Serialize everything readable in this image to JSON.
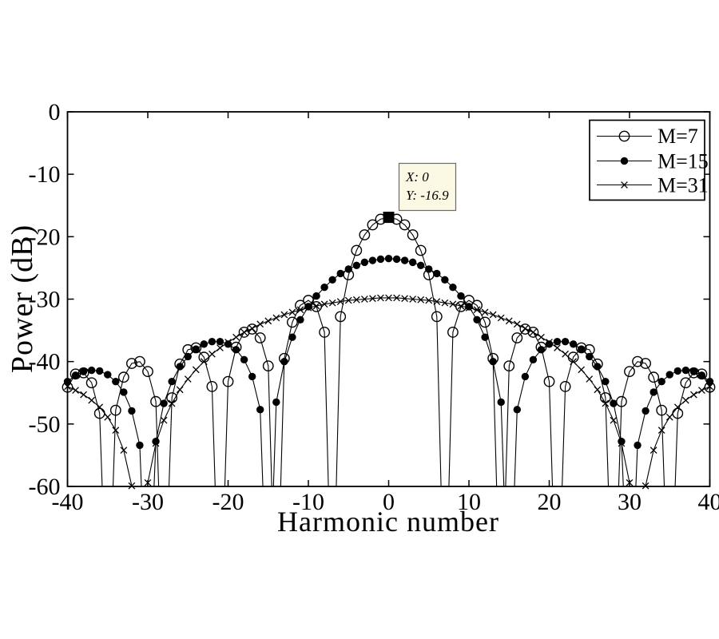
{
  "figure": {
    "background": "#ffffff",
    "line_color": "#000000"
  },
  "chart_data": {
    "type": "line",
    "title": "",
    "xlabel": "Harmonic number",
    "ylabel": "Power (dB)",
    "xlim": [
      -40,
      40
    ],
    "ylim": [
      -60,
      0
    ],
    "grid": false,
    "legend_position": "northeast",
    "xticks": [
      -40,
      -30,
      -20,
      -10,
      0,
      10,
      20,
      30,
      40
    ],
    "xtick_labels": [
      "-40",
      "-30",
      "-20",
      "-10",
      "0",
      "10",
      "20",
      "30",
      "40"
    ],
    "yticks": [
      0,
      -10,
      -20,
      -30,
      -40,
      -50,
      -60
    ],
    "ytick_labels": [
      "0",
      "-10",
      "-20",
      "-30",
      "-40",
      "-50",
      "-60"
    ],
    "x": [
      -40,
      -39,
      -38,
      -37,
      -36,
      -35,
      -34,
      -33,
      -32,
      -31,
      -30,
      -29,
      -28,
      -27,
      -26,
      -25,
      -24,
      -23,
      -22,
      -21,
      -20,
      -19,
      -18,
      -17,
      -16,
      -15,
      -14,
      -13,
      -12,
      -11,
      -10,
      -9,
      -8,
      -7,
      -6,
      -5,
      -4,
      -3,
      -2,
      -1,
      0,
      1,
      2,
      3,
      4,
      5,
      6,
      7,
      8,
      9,
      10,
      11,
      12,
      13,
      14,
      15,
      16,
      17,
      18,
      19,
      20,
      21,
      22,
      23,
      24,
      25,
      26,
      27,
      28,
      29,
      30,
      31,
      32,
      33,
      34,
      35,
      36,
      37,
      38,
      39,
      40
    ],
    "series": [
      {
        "name": "M=7",
        "marker": "circle-open",
        "color": "#000000",
        "values": [
          -44.1,
          -42.0,
          -41.8,
          -43.4,
          -48.3,
          null,
          -47.8,
          -42.5,
          -40.3,
          -40.0,
          -41.6,
          -46.4,
          null,
          -45.8,
          -40.4,
          -38.1,
          -37.8,
          -39.3,
          -44.0,
          null,
          -43.2,
          -37.7,
          -35.3,
          -34.8,
          -36.2,
          -40.7,
          null,
          -39.5,
          -33.7,
          -31.0,
          -30.2,
          -31.2,
          -35.3,
          null,
          -32.8,
          -26.1,
          -22.2,
          -19.7,
          -18.1,
          -17.2,
          -16.9,
          -17.2,
          -18.1,
          -19.7,
          -22.2,
          -26.1,
          -32.8,
          null,
          -35.3,
          -31.2,
          -30.2,
          -31.0,
          -33.7,
          -39.5,
          null,
          -40.7,
          -36.2,
          -34.8,
          -35.3,
          -37.7,
          -43.2,
          null,
          -44.0,
          -39.3,
          -37.8,
          -38.1,
          -40.4,
          -45.8,
          null,
          -46.4,
          -41.6,
          -40.0,
          -40.3,
          -42.5,
          -47.8,
          null,
          -48.3,
          -43.4,
          -41.8,
          -42.0,
          -44.1
        ]
      },
      {
        "name": "M=15",
        "marker": "dot",
        "color": "#000000",
        "values": [
          -43.2,
          -42.2,
          -41.6,
          -41.4,
          -41.5,
          -42.1,
          -43.2,
          -44.9,
          -47.9,
          -53.4,
          null,
          -52.8,
          -46.7,
          -43.2,
          -40.8,
          -39.2,
          -38.0,
          -37.2,
          -36.8,
          -36.8,
          -37.2,
          -38.1,
          -39.7,
          -42.4,
          -47.7,
          null,
          -46.5,
          -40.0,
          -36.1,
          -33.3,
          -31.2,
          -29.5,
          -28.1,
          -26.9,
          -25.9,
          -25.2,
          -24.6,
          -24.1,
          -23.8,
          -23.6,
          -23.5,
          -23.6,
          -23.8,
          -24.1,
          -24.6,
          -25.2,
          -25.9,
          -26.9,
          -28.1,
          -29.5,
          -31.2,
          -33.3,
          -36.1,
          -40.0,
          -46.5,
          null,
          -47.7,
          -42.4,
          -39.7,
          -38.1,
          -37.2,
          -36.8,
          -36.8,
          -37.2,
          -38.0,
          -39.2,
          -40.8,
          -43.2,
          -46.7,
          -52.8,
          null,
          -53.4,
          -47.9,
          -44.9,
          -43.2,
          -42.1,
          -41.5,
          -41.4,
          -41.6,
          -42.2,
          -43.2
        ]
      },
      {
        "name": "M=31",
        "marker": "x",
        "color": "#000000",
        "values": [
          -44.0,
          -44.6,
          -45.3,
          -46.2,
          -47.3,
          -48.9,
          -51.0,
          -54.2,
          -59.9,
          null,
          -59.4,
          -53.1,
          -49.4,
          -46.7,
          -44.5,
          -42.8,
          -41.3,
          -40.0,
          -38.8,
          -37.8,
          -36.9,
          -36.1,
          -35.3,
          -34.7,
          -34.0,
          -33.5,
          -33.0,
          -32.5,
          -32.1,
          -31.7,
          -31.4,
          -31.1,
          -30.8,
          -30.6,
          -30.4,
          -30.2,
          -30.1,
          -30.0,
          -29.9,
          -29.8,
          -29.8,
          -29.8,
          -29.9,
          -30.0,
          -30.1,
          -30.2,
          -30.4,
          -30.6,
          -30.8,
          -31.1,
          -31.4,
          -31.7,
          -32.1,
          -32.5,
          -33.0,
          -33.5,
          -34.0,
          -34.7,
          -35.3,
          -36.1,
          -36.9,
          -37.8,
          -38.8,
          -40.0,
          -41.3,
          -42.8,
          -44.5,
          -46.7,
          -49.4,
          -53.1,
          -59.4,
          null,
          -59.9,
          -54.2,
          -51.0,
          -48.9,
          -47.3,
          -46.2,
          -45.3,
          -44.6,
          -44.0
        ]
      }
    ],
    "datatip": {
      "x": 0,
      "y": -16.9,
      "line1": "X: 0",
      "line2": "Y: -16.9",
      "box_color": "#fbf9e4",
      "border_color": "#6b6b6b",
      "text_color": "#3c3c3c",
      "marker_color": "#000000"
    }
  }
}
